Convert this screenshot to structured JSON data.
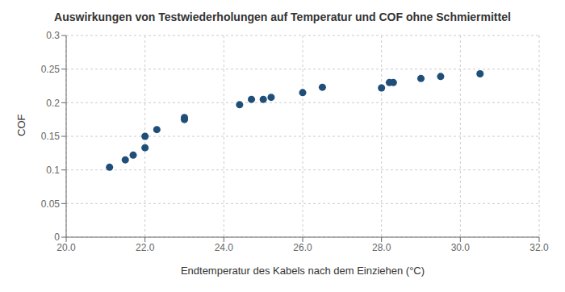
{
  "chart_data": {
    "type": "scatter",
    "title": "Auswirkungen von Testwiederholungen auf Temperatur und COF ohne Schmiermittel",
    "xlabel": "Endtemperatur des Kabels nach dem Einziehen (°C)",
    "ylabel": "COF",
    "x": [
      21.1,
      21.5,
      21.7,
      22.0,
      22.0,
      22.3,
      23.0,
      23.0,
      24.4,
      24.7,
      25.0,
      25.2,
      26.0,
      26.5,
      28.0,
      28.2,
      28.3,
      29.0,
      29.5,
      30.5
    ],
    "values": [
      0.104,
      0.115,
      0.122,
      0.15,
      0.133,
      0.16,
      0.178,
      0.175,
      0.197,
      0.205,
      0.205,
      0.208,
      0.215,
      0.223,
      0.222,
      0.23,
      0.23,
      0.236,
      0.239,
      0.243
    ],
    "color": "#1f4e79",
    "xlim": [
      20.0,
      32.0
    ],
    "ylim": [
      0,
      0.3
    ],
    "xticks": [
      {
        "value": 20,
        "label": "20.0"
      },
      {
        "value": 22,
        "label": "22.0"
      },
      {
        "value": 24,
        "label": "24.0"
      },
      {
        "value": 26,
        "label": "26.0"
      },
      {
        "value": 28,
        "label": "28.0"
      },
      {
        "value": 30,
        "label": "30.0"
      },
      {
        "value": 32,
        "label": "32.0"
      }
    ],
    "yticks": [
      0,
      0.05,
      0.1,
      0.15,
      0.2,
      0.25,
      0.3
    ],
    "grid": true
  }
}
